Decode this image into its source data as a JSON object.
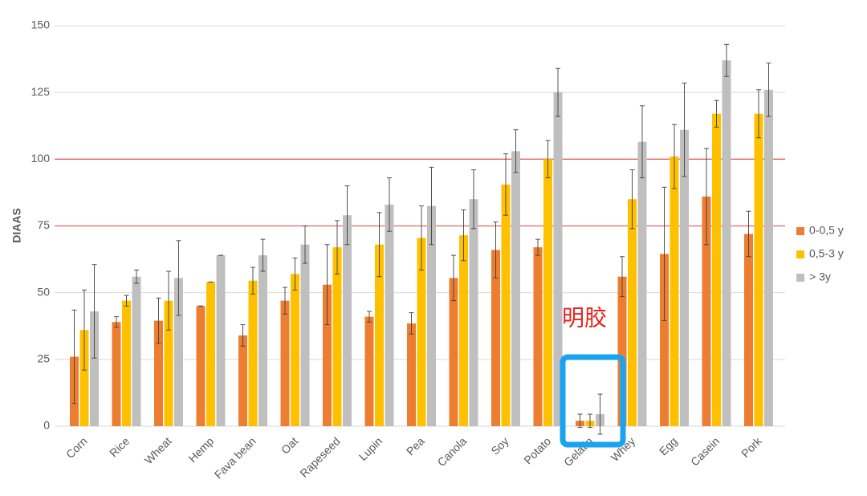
{
  "chart_data": {
    "type": "bar",
    "y_label": "DIAAS",
    "categories": [
      "Corn",
      "Rice",
      "Wheat",
      "Hemp",
      "Fava bean",
      "Oat",
      "Rapeseed",
      "Lupin",
      "Pea",
      "Canola",
      "Soy",
      "Potato",
      "Gelatin",
      "Whey",
      "Egg",
      "Casein",
      "Pork"
    ],
    "series": [
      {
        "name": "0-0,5 y",
        "color": "#ed7d31",
        "values": [
          26,
          39,
          39.5,
          45,
          34,
          47,
          53,
          41,
          38.5,
          55.5,
          66,
          67,
          2,
          56,
          64.5,
          86,
          72
        ],
        "errors": [
          17.5,
          2,
          8.5,
          0,
          4,
          5,
          15,
          2,
          4,
          8.5,
          10.5,
          3,
          2.5,
          7.5,
          25,
          18,
          8.5
        ]
      },
      {
        "name": "0,5-3 y",
        "color": "#ffc000",
        "values": [
          36,
          47,
          47,
          54,
          54.5,
          57,
          67,
          68,
          70.5,
          71.5,
          90.5,
          100,
          2,
          85,
          101,
          117,
          117
        ],
        "errors": [
          15,
          2,
          11,
          0,
          5,
          6,
          10,
          12,
          12,
          9.5,
          11.5,
          7,
          2.5,
          11,
          12,
          5,
          9
        ]
      },
      {
        "name": "> 3y",
        "color": "#bfbfbf",
        "values": [
          43,
          56,
          55.5,
          64,
          64,
          68,
          79,
          83,
          82.5,
          85,
          103,
          125,
          4.5,
          106.5,
          111,
          137,
          126
        ],
        "errors": [
          17.5,
          2.5,
          14,
          0,
          6,
          7,
          11,
          10,
          14.5,
          11,
          8,
          9,
          7.5,
          13.5,
          17.5,
          6,
          10
        ]
      }
    ],
    "ylim": [
      0,
      150
    ],
    "yticks": [
      0,
      25,
      50,
      75,
      100,
      125,
      150
    ],
    "grid": true,
    "reference_lines": [
      75,
      100
    ],
    "reference_color": "#e06666",
    "annotation": "明胶",
    "legend": "right"
  }
}
